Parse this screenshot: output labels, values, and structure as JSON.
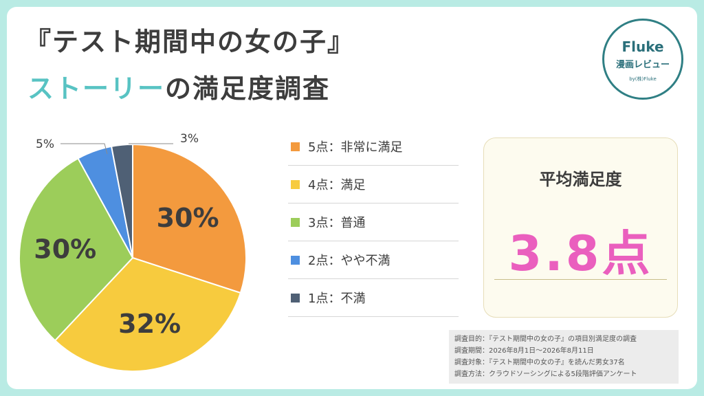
{
  "title": {
    "line1": "『テスト期間中の女の子』",
    "line2_accent": "ストーリー",
    "line2_rest": "の満足度調査"
  },
  "logo": {
    "name": "Fluke",
    "sub": "漫画レビュー",
    "by": "by(株)Fluke"
  },
  "colors": {
    "accent": "#58c3c3",
    "average_value": "#ea5fbe"
  },
  "chart_data": {
    "type": "pie",
    "categories": [
      "5点：非常に満足",
      "4点：満足",
      "3点：普通",
      "2点：やや不満",
      "1点：不満"
    ],
    "values": [
      30,
      32,
      30,
      5,
      3
    ],
    "labels": [
      "30%",
      "32%",
      "30%",
      "5%",
      "3%"
    ],
    "colors": [
      "#f39a3e",
      "#f7cb3e",
      "#9ccd5a",
      "#4e8fe0",
      "#4f6075"
    ]
  },
  "average": {
    "label": "平均満足度",
    "value": "3.8点"
  },
  "notes": [
    "調査目的：『テスト期間中の女の子』の項目別満足度の調査",
    "調査期間：2026年8月1日～2026年8月11日",
    "調査対象：『テスト期間中の女の子』を読んだ男女37名",
    "調査方法：クラウドソーシングによる5段階評価アンケート"
  ]
}
